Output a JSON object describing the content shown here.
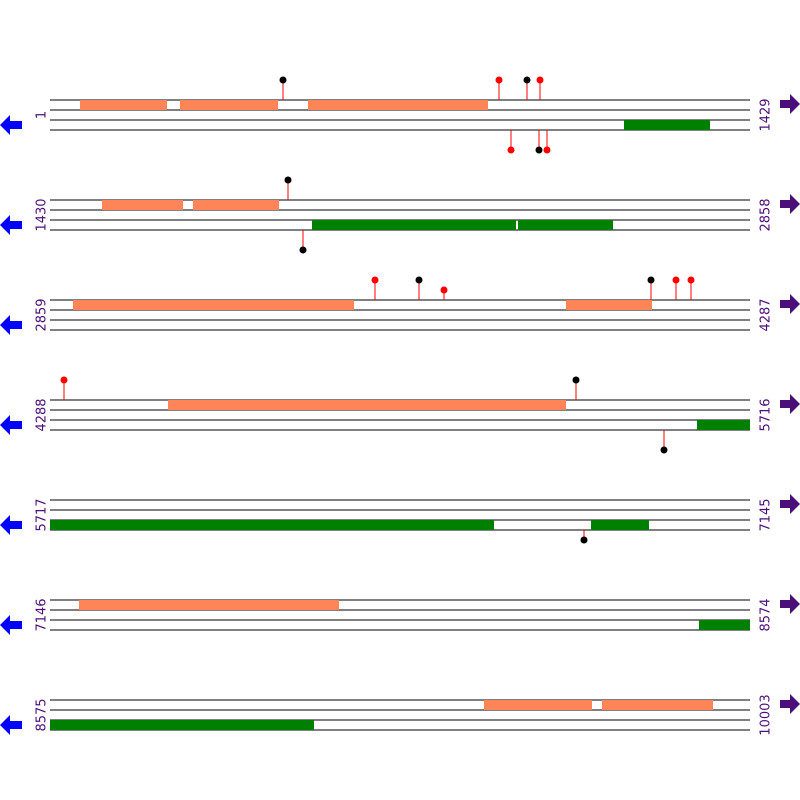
{
  "rows": [
    {
      "start": 1,
      "end": 1429
    },
    {
      "start": 1430,
      "end": 2858
    },
    {
      "start": 2859,
      "end": 4287
    },
    {
      "start": 4288,
      "end": 5716
    },
    {
      "start": 5717,
      "end": 7145
    },
    {
      "start": 7146,
      "end": 8574
    },
    {
      "start": 8575,
      "end": 10003
    }
  ]
}
